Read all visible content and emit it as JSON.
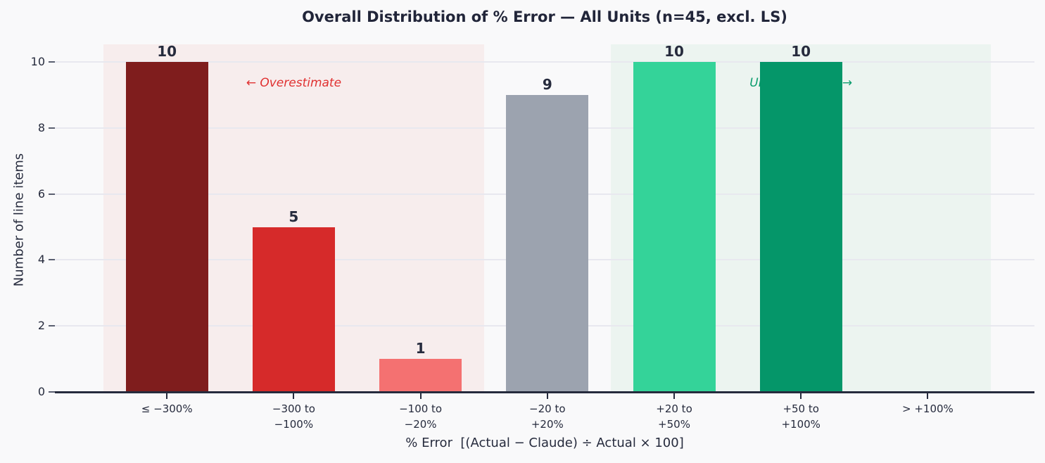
{
  "chart_data": {
    "type": "bar",
    "title": "Overall Distribution of % Error — All Units (n=45, excl. LS)",
    "xlabel": "% Error  [(Actual − Claude) ÷ Actual × 100]",
    "ylabel": "Number of line items",
    "categories": [
      "≤ −300%",
      "−300 to\n−100%",
      "−100 to\n−20%",
      "−20 to\n+20%",
      "+20 to\n+50%",
      "+50 to\n+100%",
      "> +100%"
    ],
    "values": [
      10,
      5,
      1,
      9,
      10,
      10,
      0
    ],
    "bar_colors": [
      "#7f1d1d",
      "#d62a2a",
      "#f47171",
      "#9ca3af",
      "#34d399",
      "#059669",
      "#9ca3af"
    ],
    "yticks": [
      0,
      2,
      4,
      6,
      8,
      10
    ],
    "ylim": [
      0,
      10.53
    ],
    "grid": true,
    "legend": null,
    "background_color": "#f9f9fa",
    "bands": [
      {
        "name": "overestimate-region",
        "from_cat": 0,
        "to_cat": 2,
        "color": "#f7eded"
      },
      {
        "name": "underestimate-region",
        "from_cat": 4,
        "to_cat": 6,
        "color": "#ecf4f0"
      }
    ],
    "annotations": [
      {
        "name": "overestimate-annotation",
        "text": "← Overestimate",
        "color": "#e03131",
        "band": 0
      },
      {
        "name": "underestimate-annotation",
        "text": "Underestimate →",
        "color": "#0c9d6e",
        "band": 1
      }
    ]
  }
}
